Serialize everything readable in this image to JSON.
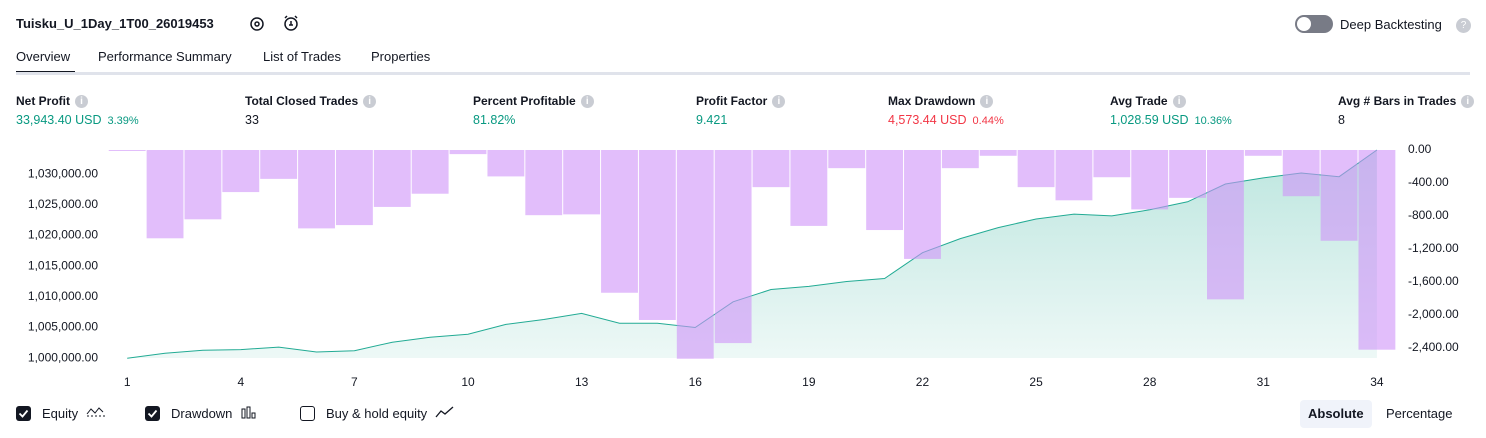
{
  "header": {
    "title": "Tuisku_U_1Day_1T00_26019453",
    "deep_backtesting": "Deep Backtesting"
  },
  "tabs": [
    "Overview",
    "Performance Summary",
    "List of Trades",
    "Properties"
  ],
  "metrics": [
    {
      "label": "Net Profit",
      "value": "33,943.40 USD",
      "percent": "3.39%",
      "tone": "positive"
    },
    {
      "label": "Total Closed Trades",
      "value": "33",
      "tone": "neutral"
    },
    {
      "label": "Percent Profitable",
      "value": "81.82%",
      "tone": "positive"
    },
    {
      "label": "Profit Factor",
      "value": "9.421",
      "tone": "positive"
    },
    {
      "label": "Max Drawdown",
      "value": "4,573.44 USD",
      "percent": "0.44%",
      "tone": "negative"
    },
    {
      "label": "Avg Trade",
      "value": "1,028.59 USD",
      "percent": "10.36%",
      "tone": "positive"
    },
    {
      "label": "Avg # Bars in Trades",
      "value": "8",
      "tone": "neutral"
    }
  ],
  "chart_data": {
    "type": "line",
    "x": [
      1,
      2,
      3,
      4,
      5,
      6,
      7,
      8,
      9,
      10,
      11,
      12,
      13,
      14,
      15,
      16,
      17,
      18,
      19,
      20,
      21,
      22,
      23,
      24,
      25,
      26,
      27,
      28,
      29,
      30,
      31,
      32,
      33,
      34
    ],
    "xlim": [
      0.52,
      34.53
    ],
    "xticks": [
      1,
      4,
      7,
      10,
      13,
      16,
      19,
      22,
      25,
      28,
      31,
      34
    ],
    "series": [
      {
        "name": "Equity",
        "type": "area",
        "color": "#22ab94",
        "checked": true,
        "values": [
          1000000,
          1000800,
          1001300,
          1001400,
          1001800,
          1001000,
          1001200,
          1002600,
          1003400,
          1003900,
          1005500,
          1006300,
          1007300,
          1005700,
          1005700,
          1005000,
          1009200,
          1011200,
          1011700,
          1012500,
          1013000,
          1017200,
          1019500,
          1021300,
          1022700,
          1023500,
          1023200,
          1024200,
          1025500,
          1028400,
          1029400,
          1030200,
          1029600,
          1033943
        ]
      },
      {
        "name": "Drawdown",
        "type": "bar",
        "axis": "y2",
        "color": "#ce93f8",
        "checked": true,
        "values": [
          -10,
          -1070,
          -840,
          -510,
          -350,
          -950,
          -910,
          -690,
          -530,
          -50,
          -320,
          -790,
          -780,
          -1730,
          -2060,
          -2530,
          -2340,
          -450,
          -920,
          -220,
          -970,
          -1320,
          -220,
          -70,
          -450,
          -610,
          -330,
          -720,
          -580,
          -1810,
          -70,
          -560,
          -1100,
          -2420
        ]
      }
    ],
    "ylim": [
      999700,
      1033950
    ],
    "yticks": [
      {
        "value": 1000000,
        "label": "1,000,000.00"
      },
      {
        "value": 1005000,
        "label": "1,005,000.00"
      },
      {
        "value": 1010000,
        "label": "1,010,000.00"
      },
      {
        "value": 1015000,
        "label": "1,015,000.00"
      },
      {
        "value": 1020000,
        "label": "1,020,000.00"
      },
      {
        "value": 1025000,
        "label": "1,025,000.00"
      },
      {
        "value": 1030000,
        "label": "1,030,000.00"
      }
    ],
    "y2lim": [
      -2545,
      0
    ],
    "y2ticks": [
      {
        "value": 0,
        "label": "0.00"
      },
      {
        "value": -400,
        "label": "-400.00"
      },
      {
        "value": -800,
        "label": "-800.00"
      },
      {
        "value": -1200,
        "label": "-1,200.00"
      },
      {
        "value": -1600,
        "label": "-1,600.00"
      },
      {
        "value": -2000,
        "label": "-2,000.00"
      },
      {
        "value": -2400,
        "label": "-2,400.00"
      }
    ],
    "other_legend": [
      {
        "name": "Buy & hold equity",
        "checked": false
      }
    ]
  },
  "view_modes": [
    "Absolute",
    "Percentage"
  ]
}
